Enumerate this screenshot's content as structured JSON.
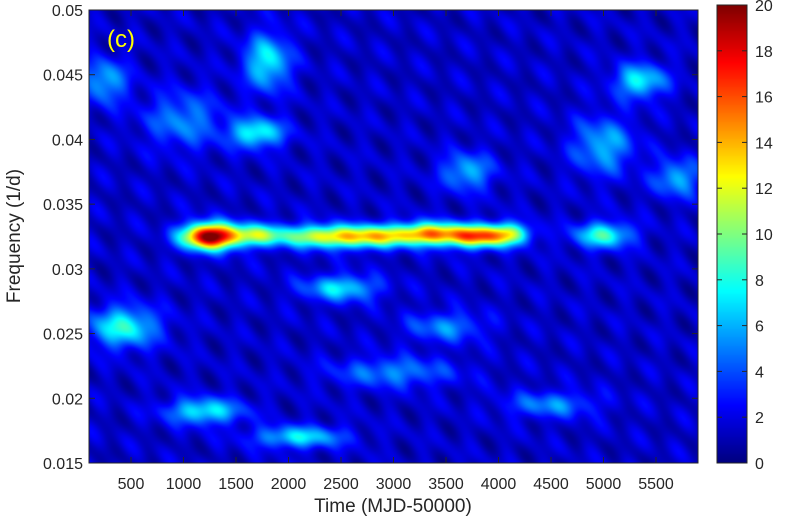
{
  "chart_data": {
    "type": "heatmap",
    "panel_label": "(c)",
    "xlabel": "Time (MJD-50000)",
    "ylabel": "Frequency (1/d)",
    "xlim": [
      100,
      5900
    ],
    "ylim": [
      0.015,
      0.05
    ],
    "x_ticks": [
      500,
      1000,
      1500,
      2000,
      2500,
      3000,
      3500,
      4000,
      4500,
      5000,
      5500
    ],
    "y_ticks": [
      0.015,
      0.02,
      0.025,
      0.03,
      0.035,
      0.04,
      0.045,
      0.05
    ],
    "x_tick_labels": [
      "500",
      "1000",
      "1500",
      "2000",
      "2500",
      "3000",
      "3500",
      "4000",
      "4500",
      "5000",
      "5500"
    ],
    "y_tick_labels": [
      "0.015",
      "0.02",
      "0.025",
      "0.03",
      "0.035",
      "0.04",
      "0.045",
      "0.05"
    ],
    "colorbar": {
      "colormap": "jet",
      "range": [
        0,
        20
      ],
      "ticks": [
        0,
        2,
        4,
        6,
        8,
        10,
        12,
        14,
        16,
        18,
        20
      ],
      "tick_labels": [
        "0",
        "2",
        "4",
        "6",
        "8",
        "10",
        "12",
        "14",
        "16",
        "18",
        "20"
      ]
    },
    "features": [
      {
        "time": 1250,
        "freq": 0.0325,
        "power": 20,
        "sigma_t": 180,
        "sigma_f": 0.0007
      },
      {
        "time": 1700,
        "freq": 0.0326,
        "power": 9,
        "sigma_t": 200,
        "sigma_f": 0.0006
      },
      {
        "time": 2300,
        "freq": 0.0325,
        "power": 10,
        "sigma_t": 250,
        "sigma_f": 0.0006
      },
      {
        "time": 2800,
        "freq": 0.0325,
        "power": 11,
        "sigma_t": 250,
        "sigma_f": 0.0006
      },
      {
        "time": 3350,
        "freq": 0.0327,
        "power": 13,
        "sigma_t": 230,
        "sigma_f": 0.0006
      },
      {
        "time": 3800,
        "freq": 0.0325,
        "power": 13,
        "sigma_t": 200,
        "sigma_f": 0.0006
      },
      {
        "time": 4100,
        "freq": 0.0327,
        "power": 8,
        "sigma_t": 150,
        "sigma_f": 0.0006
      },
      {
        "time": 5000,
        "freq": 0.0326,
        "power": 7.5,
        "sigma_t": 190,
        "sigma_f": 0.0007
      },
      {
        "time": 430,
        "freq": 0.0255,
        "power": 7,
        "sigma_t": 230,
        "sigma_f": 0.0011
      },
      {
        "time": 2500,
        "freq": 0.0285,
        "power": 6,
        "sigma_t": 250,
        "sigma_f": 0.0007
      },
      {
        "time": 1700,
        "freq": 0.0405,
        "power": 7,
        "sigma_t": 180,
        "sigma_f": 0.0008
      },
      {
        "time": 1800,
        "freq": 0.046,
        "power": 6.5,
        "sigma_t": 150,
        "sigma_f": 0.0015
      },
      {
        "time": 5350,
        "freq": 0.0445,
        "power": 6.5,
        "sigma_t": 170,
        "sigma_f": 0.0009
      },
      {
        "time": 1200,
        "freq": 0.019,
        "power": 6.5,
        "sigma_t": 250,
        "sigma_f": 0.0007
      },
      {
        "time": 2100,
        "freq": 0.017,
        "power": 6,
        "sigma_t": 300,
        "sigma_f": 0.0006
      },
      {
        "time": 3700,
        "freq": 0.0375,
        "power": 5,
        "sigma_t": 170,
        "sigma_f": 0.001
      },
      {
        "time": 1000,
        "freq": 0.0415,
        "power": 4,
        "sigma_t": 250,
        "sigma_f": 0.0015
      },
      {
        "time": 5000,
        "freq": 0.0395,
        "power": 5,
        "sigma_t": 200,
        "sigma_f": 0.0015
      },
      {
        "time": 3000,
        "freq": 0.022,
        "power": 4,
        "sigma_t": 400,
        "sigma_f": 0.0008
      },
      {
        "time": 4500,
        "freq": 0.0195,
        "power": 4,
        "sigma_t": 300,
        "sigma_f": 0.0007
      },
      {
        "time": 5700,
        "freq": 0.037,
        "power": 5,
        "sigma_t": 150,
        "sigma_f": 0.001
      },
      {
        "time": 250,
        "freq": 0.0445,
        "power": 5,
        "sigma_t": 150,
        "sigma_f": 0.0012
      },
      {
        "time": 3500,
        "freq": 0.0255,
        "power": 4,
        "sigma_t": 250,
        "sigma_f": 0.0008
      }
    ],
    "grid": false,
    "legend": "none"
  }
}
